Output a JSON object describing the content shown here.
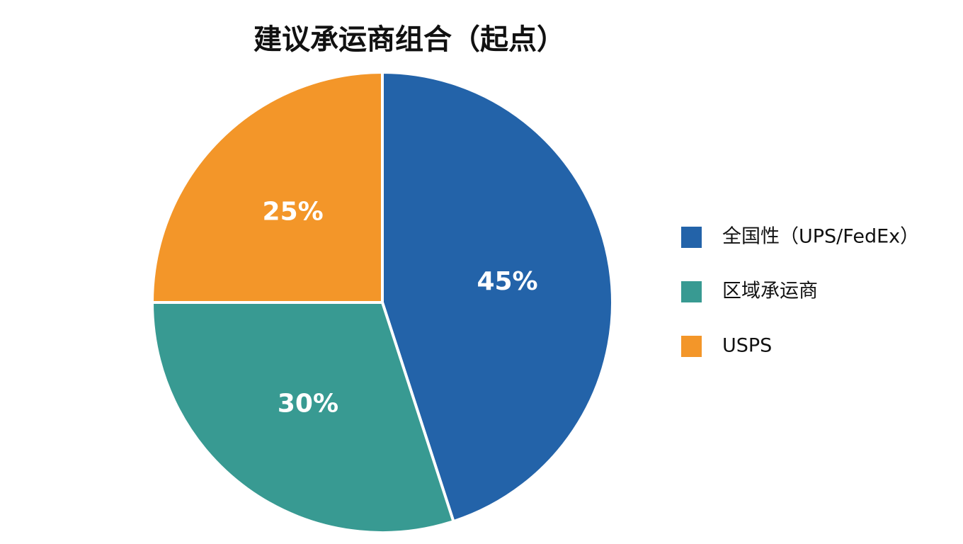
{
  "chart_data": {
    "type": "pie",
    "title": "建议承运商组合（起点）",
    "categories": [
      "全国性（UPS/FedEx）",
      "区域承运商",
      "USPS"
    ],
    "values": [
      45,
      30,
      25
    ],
    "value_labels": [
      "45%",
      "30%",
      "25%"
    ],
    "colors": [
      "#2363a9",
      "#389a92",
      "#f39629"
    ],
    "legend": "right"
  }
}
